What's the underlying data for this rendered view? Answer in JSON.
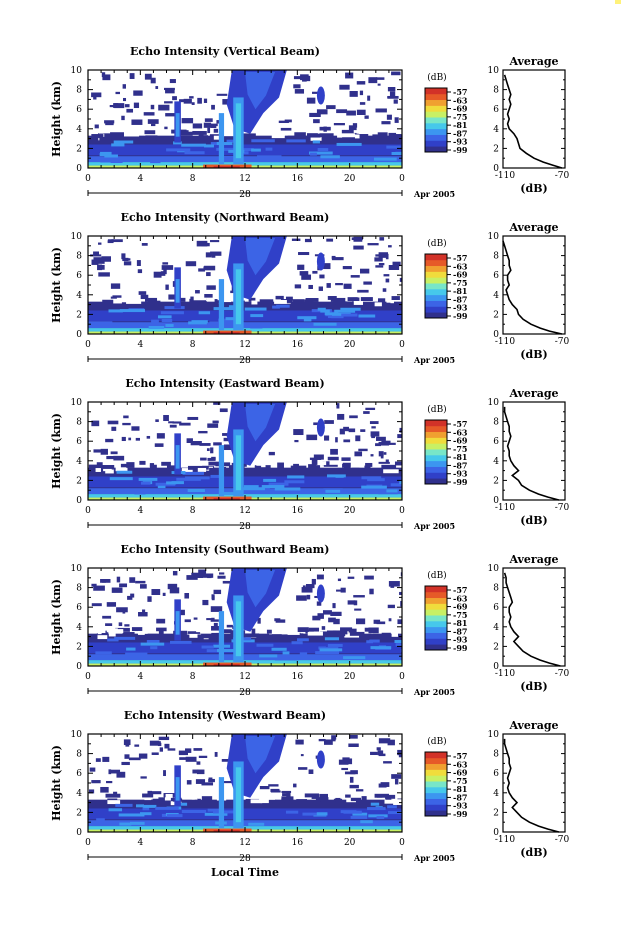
{
  "colors": {
    "scale": [
      "#30308c",
      "#3040c8",
      "#3c64e6",
      "#3c96f0",
      "#46c8eb",
      "#78e6c8",
      "#c8f064",
      "#f0dc3c",
      "#f0a030",
      "#e65a28",
      "#d23228"
    ]
  },
  "shared": {
    "date_label": "Apr 2005",
    "date_day": "28",
    "xlabel": "Local Time",
    "ylabel": "Height (km)",
    "colorbar_unit": "(dB)",
    "colorbar_ticks": [
      "-57",
      "-63",
      "-69",
      "-75",
      "-81",
      "-87",
      "-93",
      "-99"
    ],
    "profile_title": "Average",
    "profile_xlabel": "(dB)"
  },
  "chart_data": [
    {
      "type": "heatmap",
      "title": "Echo Intensity (Vertical Beam)",
      "ylabel": "Height (km)",
      "x_ticks": [
        "0",
        "4",
        "8",
        "12",
        "16",
        "20",
        "0"
      ],
      "y_ticks": [
        "0",
        "2",
        "4",
        "6",
        "8",
        "10"
      ],
      "xlim": [
        0,
        24
      ],
      "ylim": [
        0,
        10
      ],
      "colorbar": {
        "unit": "(dB)",
        "ticks": [
          -57,
          -63,
          -69,
          -75,
          -81,
          -87,
          -93,
          -99
        ]
      },
      "profile": {
        "title": "Average",
        "xlabel": "(dB)",
        "xlim": [
          -110,
          -70
        ],
        "x_ticks": [
          "-110",
          "-70"
        ],
        "y_ticks": [
          "0",
          "2",
          "4",
          "6",
          "8",
          "10"
        ],
        "height": [
          0,
          0.3,
          0.6,
          1.0,
          1.5,
          2.0,
          2.5,
          3.0,
          3.5,
          4.0,
          4.5,
          5.0,
          5.5,
          6.0,
          6.5,
          7.0,
          7.5,
          8.0,
          8.5,
          9.0,
          9.5
        ],
        "db": [
          -72,
          -78,
          -84,
          -90,
          -95,
          -99,
          -100,
          -101,
          -103,
          -106,
          -107,
          -106,
          -107,
          -106,
          -105,
          -106,
          -105,
          -106,
          -107,
          -108,
          -109
        ]
      }
    },
    {
      "type": "heatmap",
      "title": "Echo Intensity (Northward Beam)",
      "ylabel": "Height (km)",
      "x_ticks": [
        "0",
        "4",
        "8",
        "12",
        "16",
        "20",
        "0"
      ],
      "y_ticks": [
        "0",
        "2",
        "4",
        "6",
        "8",
        "10"
      ],
      "xlim": [
        0,
        24
      ],
      "ylim": [
        0,
        10
      ],
      "colorbar": {
        "unit": "(dB)",
        "ticks": [
          -57,
          -63,
          -69,
          -75,
          -81,
          -87,
          -93,
          -99
        ]
      },
      "profile": {
        "title": "Average",
        "xlabel": "(dB)",
        "xlim": [
          -110,
          -70
        ],
        "x_ticks": [
          "-110",
          "-70"
        ],
        "y_ticks": [
          "0",
          "2",
          "4",
          "6",
          "8",
          "10"
        ],
        "height": [
          0,
          0.3,
          0.6,
          1.0,
          1.5,
          2.0,
          2.5,
          3.0,
          3.5,
          4.0,
          4.5,
          5.0,
          5.5,
          6.0,
          6.5,
          7.0,
          7.5,
          8.0,
          8.5,
          9.0,
          9.5
        ],
        "db": [
          -72,
          -80,
          -86,
          -92,
          -97,
          -100,
          -101,
          -104,
          -106,
          -107,
          -108,
          -106,
          -107,
          -107,
          -105,
          -106,
          -106,
          -107,
          -108,
          -109,
          -110
        ]
      }
    },
    {
      "type": "heatmap",
      "title": "Echo Intensity (Eastward Beam)",
      "ylabel": "Height (km)",
      "x_ticks": [
        "0",
        "4",
        "8",
        "12",
        "16",
        "20",
        "0"
      ],
      "y_ticks": [
        "0",
        "2",
        "4",
        "6",
        "8",
        "10"
      ],
      "xlim": [
        0,
        24
      ],
      "ylim": [
        0,
        10
      ],
      "colorbar": {
        "unit": "(dB)",
        "ticks": [
          -57,
          -63,
          -69,
          -75,
          -81,
          -87,
          -93,
          -99
        ]
      },
      "profile": {
        "title": "Average",
        "xlabel": "(dB)",
        "xlim": [
          -110,
          -70
        ],
        "x_ticks": [
          "-110",
          "-70"
        ],
        "y_ticks": [
          "0",
          "2",
          "4",
          "6",
          "8",
          "10"
        ],
        "height": [
          0,
          0.3,
          0.6,
          1.0,
          1.5,
          2.0,
          2.5,
          3.0,
          3.5,
          4.0,
          4.5,
          5.0,
          5.5,
          6.0,
          6.5,
          7.0,
          7.5,
          8.0,
          8.5,
          9.0,
          9.5
        ],
        "db": [
          -74,
          -81,
          -87,
          -93,
          -98,
          -100,
          -104,
          -100,
          -103,
          -105,
          -106,
          -106,
          -107,
          -106,
          -105,
          -106,
          -106,
          -107,
          -108,
          -109,
          -109
        ]
      }
    },
    {
      "type": "heatmap",
      "title": "Echo Intensity (Southward Beam)",
      "ylabel": "Height (km)",
      "x_ticks": [
        "0",
        "4",
        "8",
        "12",
        "16",
        "20",
        "0"
      ],
      "y_ticks": [
        "0",
        "2",
        "4",
        "6",
        "8",
        "10"
      ],
      "xlim": [
        0,
        24
      ],
      "ylim": [
        0,
        10
      ],
      "colorbar": {
        "unit": "(dB)",
        "ticks": [
          -57,
          -63,
          -69,
          -75,
          -81,
          -87,
          -93,
          -99
        ]
      },
      "profile": {
        "title": "Average",
        "xlabel": "(dB)",
        "xlim": [
          -110,
          -70
        ],
        "x_ticks": [
          "-110",
          "-70"
        ],
        "y_ticks": [
          "0",
          "2",
          "4",
          "6",
          "8",
          "10"
        ],
        "height": [
          0,
          0.3,
          0.6,
          1.0,
          1.5,
          2.0,
          2.5,
          3.0,
          3.5,
          4.0,
          4.5,
          5.0,
          5.5,
          6.0,
          6.5,
          7.0,
          7.5,
          8.0,
          8.5,
          9.0,
          9.5
        ],
        "db": [
          -73,
          -80,
          -86,
          -92,
          -97,
          -100,
          -103,
          -100,
          -103,
          -105,
          -106,
          -105,
          -106,
          -106,
          -104,
          -105,
          -106,
          -107,
          -108,
          -108,
          -109
        ]
      }
    },
    {
      "type": "heatmap",
      "title": "Echo Intensity (Westward Beam)",
      "ylabel": "Height (km)",
      "xlabel": "Local Time",
      "x_ticks": [
        "0",
        "4",
        "8",
        "12",
        "16",
        "20",
        "0"
      ],
      "y_ticks": [
        "0",
        "2",
        "4",
        "6",
        "8",
        "10"
      ],
      "xlim": [
        0,
        24
      ],
      "ylim": [
        0,
        10
      ],
      "colorbar": {
        "unit": "(dB)",
        "ticks": [
          -57,
          -63,
          -69,
          -75,
          -81,
          -87,
          -93,
          -99
        ]
      },
      "profile": {
        "title": "Average",
        "xlabel": "(dB)",
        "xlim": [
          -110,
          -70
        ],
        "x_ticks": [
          "-110",
          "-70"
        ],
        "y_ticks": [
          "0",
          "2",
          "4",
          "6",
          "8",
          "10"
        ],
        "height": [
          0,
          0.3,
          0.6,
          1.0,
          1.5,
          2.0,
          2.5,
          3.0,
          3.5,
          4.0,
          4.5,
          5.0,
          5.5,
          6.0,
          6.5,
          7.0,
          7.5,
          8.0,
          8.5,
          9.0,
          9.5
        ],
        "db": [
          -74,
          -81,
          -87,
          -93,
          -98,
          -101,
          -104,
          -101,
          -104,
          -106,
          -107,
          -106,
          -107,
          -106,
          -105,
          -106,
          -106,
          -107,
          -108,
          -109,
          -109
        ]
      }
    }
  ]
}
